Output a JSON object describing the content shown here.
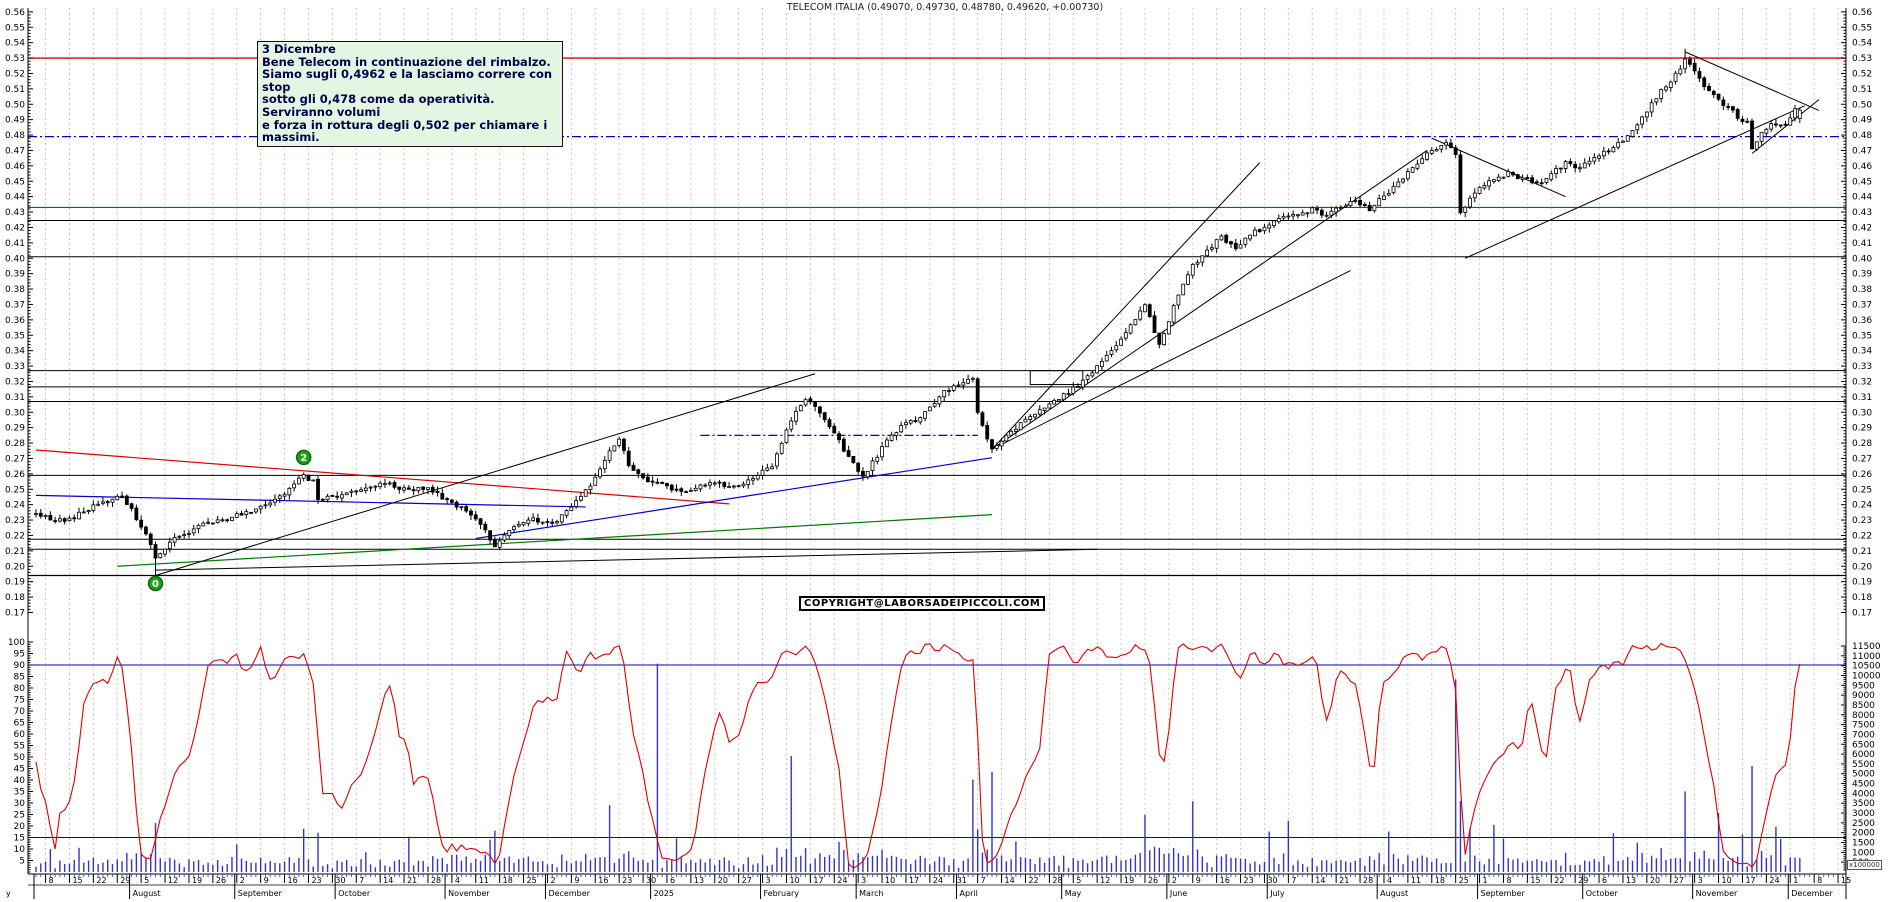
{
  "title": "TELECOM ITALIA (0.49070, 0.49730, 0.48780, 0.49620,  +0.00730)",
  "annotation": {
    "title": "3 Dicembre",
    "lines": [
      "Bene Telecom in continuazione del rimbalzo.",
      "Siamo sugli 0,4962 e la lasciamo correre con stop",
      "sotto gli 0,478 come da operatività. Serviranno volumi",
      "e forza in rottura degli 0,502 per chiamare i massimi."
    ]
  },
  "copyright": "COPYRIGHT@LABORSADEIPICCOLI.COM",
  "colors": {
    "background": "#ffffff",
    "grid": "#c8c8c8",
    "axis": "#000000",
    "candle_up_fill": "#ffffff",
    "candle_down_fill": "#000000",
    "candle_stroke": "#000000",
    "resistance_red": "#dd0000",
    "support_green": "#007700",
    "blue_line": "#0000cc",
    "oscillator": "#e00000",
    "volume": "#3333cc",
    "marker_fill": "#1fa01f",
    "marker_stroke": "#0a6a0a",
    "annotation_bg": "#e4f6e2",
    "annotation_text": "#00004d"
  },
  "chart_data": {
    "type": "candlestick+volume+oscillator",
    "instrument": "TELECOM ITALIA",
    "quote": {
      "open": 0.4907,
      "high": 0.4973,
      "low": 0.4878,
      "close": 0.4962,
      "change": "+0.00730"
    },
    "price_axis": {
      "min": 0.17,
      "max": 0.56,
      "step": 0.01
    },
    "oscillator_axis": {
      "min": 0,
      "max": 100,
      "step": 5,
      "ref_lines": [
        90,
        15
      ]
    },
    "volume_axis": {
      "min": 500,
      "max": 11500,
      "step": 500,
      "multiplier": "x100000"
    },
    "date_start": "2024-07-04",
    "date_last_candle": "2025-12-03",
    "date_axis_end": "2025-12-16",
    "months": [
      {
        "label": "y",
        "year": 2024,
        "month": 7
      },
      {
        "label": "August",
        "year": 2024,
        "month": 8
      },
      {
        "label": "September",
        "year": 2024,
        "month": 9
      },
      {
        "label": "October",
        "year": 2024,
        "month": 10
      },
      {
        "label": "November",
        "year": 2024,
        "month": 11
      },
      {
        "label": "December",
        "year": 2024,
        "month": 12
      },
      {
        "label": "2025",
        "year": 2025,
        "month": 1
      },
      {
        "label": "February",
        "year": 2025,
        "month": 2
      },
      {
        "label": "March",
        "year": 2025,
        "month": 3
      },
      {
        "label": "April",
        "year": 2025,
        "month": 4
      },
      {
        "label": "May",
        "year": 2025,
        "month": 5
      },
      {
        "label": "June",
        "year": 2025,
        "month": 6
      },
      {
        "label": "July",
        "year": 2025,
        "month": 7
      },
      {
        "label": "August",
        "year": 2025,
        "month": 8
      },
      {
        "label": "September",
        "year": 2025,
        "month": 9
      },
      {
        "label": "October",
        "year": 2025,
        "month": 10
      },
      {
        "label": "November",
        "year": 2025,
        "month": 11
      },
      {
        "label": "December",
        "year": 2025,
        "month": 12
      }
    ],
    "price_anchors": [
      [
        0,
        0.234
      ],
      [
        6,
        0.229
      ],
      [
        13,
        0.24
      ],
      [
        18,
        0.246
      ],
      [
        23,
        0.222
      ],
      [
        25,
        0.205
      ],
      [
        28,
        0.216
      ],
      [
        35,
        0.227
      ],
      [
        41,
        0.232
      ],
      [
        47,
        0.238
      ],
      [
        52,
        0.247
      ],
      [
        56,
        0.259
      ],
      [
        58,
        0.255
      ],
      [
        59,
        0.244
      ],
      [
        64,
        0.246
      ],
      [
        69,
        0.25
      ],
      [
        74,
        0.254
      ],
      [
        77,
        0.25
      ],
      [
        82,
        0.25
      ],
      [
        87,
        0.241
      ],
      [
        92,
        0.232
      ],
      [
        96,
        0.214
      ],
      [
        99,
        0.223
      ],
      [
        104,
        0.23
      ],
      [
        108,
        0.228
      ],
      [
        112,
        0.238
      ],
      [
        116,
        0.252
      ],
      [
        120,
        0.275
      ],
      [
        122,
        0.283
      ],
      [
        124,
        0.266
      ],
      [
        129,
        0.254
      ],
      [
        133,
        0.251
      ],
      [
        137,
        0.249
      ],
      [
        141,
        0.254
      ],
      [
        145,
        0.251
      ],
      [
        150,
        0.257
      ],
      [
        154,
        0.266
      ],
      [
        158,
        0.295
      ],
      [
        161,
        0.308
      ],
      [
        164,
        0.3
      ],
      [
        166,
        0.291
      ],
      [
        169,
        0.276
      ],
      [
        173,
        0.257
      ],
      [
        177,
        0.277
      ],
      [
        181,
        0.292
      ],
      [
        185,
        0.296
      ],
      [
        189,
        0.31
      ],
      [
        192,
        0.318
      ],
      [
        196,
        0.322
      ],
      [
        197,
        0.3
      ],
      [
        200,
        0.276
      ],
      [
        204,
        0.287
      ],
      [
        208,
        0.297
      ],
      [
        212,
        0.306
      ],
      [
        217,
        0.315
      ],
      [
        221,
        0.326
      ],
      [
        225,
        0.34
      ],
      [
        229,
        0.357
      ],
      [
        232,
        0.37
      ],
      [
        235,
        0.344
      ],
      [
        239,
        0.376
      ],
      [
        242,
        0.395
      ],
      [
        245,
        0.405
      ],
      [
        248,
        0.414
      ],
      [
        251,
        0.407
      ],
      [
        254,
        0.416
      ],
      [
        257,
        0.42
      ],
      [
        260,
        0.425
      ],
      [
        264,
        0.428
      ],
      [
        267,
        0.432
      ],
      [
        270,
        0.428
      ],
      [
        273,
        0.433
      ],
      [
        276,
        0.438
      ],
      [
        279,
        0.432
      ],
      [
        282,
        0.44
      ],
      [
        286,
        0.452
      ],
      [
        289,
        0.462
      ],
      [
        292,
        0.47
      ],
      [
        295,
        0.476
      ],
      [
        297,
        0.468
      ],
      [
        298,
        0.43
      ],
      [
        301,
        0.442
      ],
      [
        304,
        0.45
      ],
      [
        308,
        0.455
      ],
      [
        311,
        0.452
      ],
      [
        314,
        0.448
      ],
      [
        317,
        0.455
      ],
      [
        320,
        0.462
      ],
      [
        323,
        0.458
      ],
      [
        326,
        0.465
      ],
      [
        330,
        0.472
      ],
      [
        333,
        0.48
      ],
      [
        336,
        0.492
      ],
      [
        339,
        0.505
      ],
      [
        342,
        0.515
      ],
      [
        345,
        0.528
      ],
      [
        347,
        0.522
      ],
      [
        349,
        0.512
      ],
      [
        351,
        0.505
      ],
      [
        354,
        0.498
      ],
      [
        356,
        0.492
      ],
      [
        358,
        0.488
      ],
      [
        359,
        0.472
      ],
      [
        361,
        0.482
      ],
      [
        363,
        0.488
      ],
      [
        365,
        0.485
      ],
      [
        367,
        0.49
      ],
      [
        368,
        0.4962
      ]
    ],
    "last_candle_ohlc": [
      0.4907,
      0.4973,
      0.4878,
      0.4962
    ],
    "forced_low": {
      "index": 25,
      "low": 0.194
    },
    "forced_high": {
      "index": 345,
      "high": 0.536
    },
    "volume_spikes": [
      [
        25,
        2500
      ],
      [
        56,
        2200
      ],
      [
        59,
        2000
      ],
      [
        96,
        2100
      ],
      [
        120,
        3400
      ],
      [
        130,
        10600
      ],
      [
        158,
        5900
      ],
      [
        196,
        4700
      ],
      [
        200,
        5100
      ],
      [
        232,
        2900
      ],
      [
        242,
        3600
      ],
      [
        262,
        2600
      ],
      [
        297,
        9800
      ],
      [
        305,
        2400
      ],
      [
        345,
        4100
      ],
      [
        352,
        3000
      ],
      [
        359,
        5400
      ],
      [
        364,
        2300
      ]
    ],
    "hlines": [
      {
        "price": 0.53,
        "color": "#dd0000",
        "w": 1.4
      },
      {
        "price": 0.479,
        "color": "#0000cc",
        "w": 1.2,
        "dash": "9 3 2 3"
      },
      {
        "price": 0.433,
        "color": "#007700",
        "w": 1.2
      },
      {
        "price": 0.4245,
        "color": "#000000",
        "w": 1
      },
      {
        "price": 0.401,
        "color": "#000000",
        "w": 1
      },
      {
        "price": 0.327,
        "color": "#000000",
        "w": 1
      },
      {
        "price": 0.3165,
        "color": "#000000",
        "w": 1
      },
      {
        "price": 0.307,
        "color": "#000000",
        "w": 1
      },
      {
        "price": 0.259,
        "color": "#000000",
        "w": 1
      },
      {
        "price": 0.2175,
        "color": "#000000",
        "w": 1
      },
      {
        "price": 0.211,
        "color": "#000000",
        "w": 1
      },
      {
        "price": 0.194,
        "color": "#000000",
        "w": 1.3
      }
    ],
    "trendlines": [
      {
        "i1": 0,
        "p1": 0.2755,
        "i2": 145,
        "p2": 0.2405,
        "color": "#dd0000",
        "w": 1.2
      },
      {
        "i1": 0,
        "p1": 0.246,
        "i2": 115,
        "p2": 0.2385,
        "color": "#0000cc",
        "w": 1.2
      },
      {
        "i1": 92,
        "p1": 0.218,
        "i2": 200,
        "p2": 0.2705,
        "color": "#0000cc",
        "w": 1.2
      },
      {
        "i1": 17,
        "p1": 0.2,
        "i2": 200,
        "p2": 0.2335,
        "color": "#007700",
        "w": 1.2
      },
      {
        "i1": 25,
        "p1": 0.194,
        "i2": 163,
        "p2": 0.325,
        "color": "#000000",
        "w": 1
      },
      {
        "i1": 25,
        "p1": 0.1975,
        "i2": 222,
        "p2": 0.211,
        "color": "#000000",
        "w": 1
      },
      {
        "i1": 200,
        "p1": 0.276,
        "i2": 256,
        "p2": 0.462,
        "color": "#000000",
        "w": 1
      },
      {
        "i1": 200,
        "p1": 0.276,
        "i2": 291,
        "p2": 0.47,
        "color": "#000000",
        "w": 1
      },
      {
        "i1": 200,
        "p1": 0.276,
        "i2": 275,
        "p2": 0.392,
        "color": "#000000",
        "w": 1
      },
      {
        "i1": 292,
        "p1": 0.478,
        "i2": 320,
        "p2": 0.44,
        "color": "#000000",
        "w": 1
      },
      {
        "i1": 299,
        "p1": 0.4,
        "i2": 370,
        "p2": 0.499,
        "color": "#000000",
        "w": 1
      },
      {
        "i1": 345,
        "p1": 0.534,
        "i2": 373,
        "p2": 0.496,
        "color": "#000000",
        "w": 1
      },
      {
        "i1": 359,
        "p1": 0.468,
        "i2": 373,
        "p2": 0.503,
        "color": "#000000",
        "w": 1
      }
    ],
    "partial_dashdot": {
      "price": 0.285,
      "i1": 139,
      "i2": 197,
      "color": "#0000cc",
      "w": 1.2
    },
    "rect_annotation": {
      "i1": 208,
      "i2": 219,
      "p1": 0.318,
      "p2": 0.327
    },
    "markers": [
      {
        "index": 25,
        "price": 0.194,
        "label": "0"
      },
      {
        "index": 56,
        "price": 0.2655,
        "label": "2"
      }
    ],
    "volume_multiplier_label": "x100000"
  }
}
